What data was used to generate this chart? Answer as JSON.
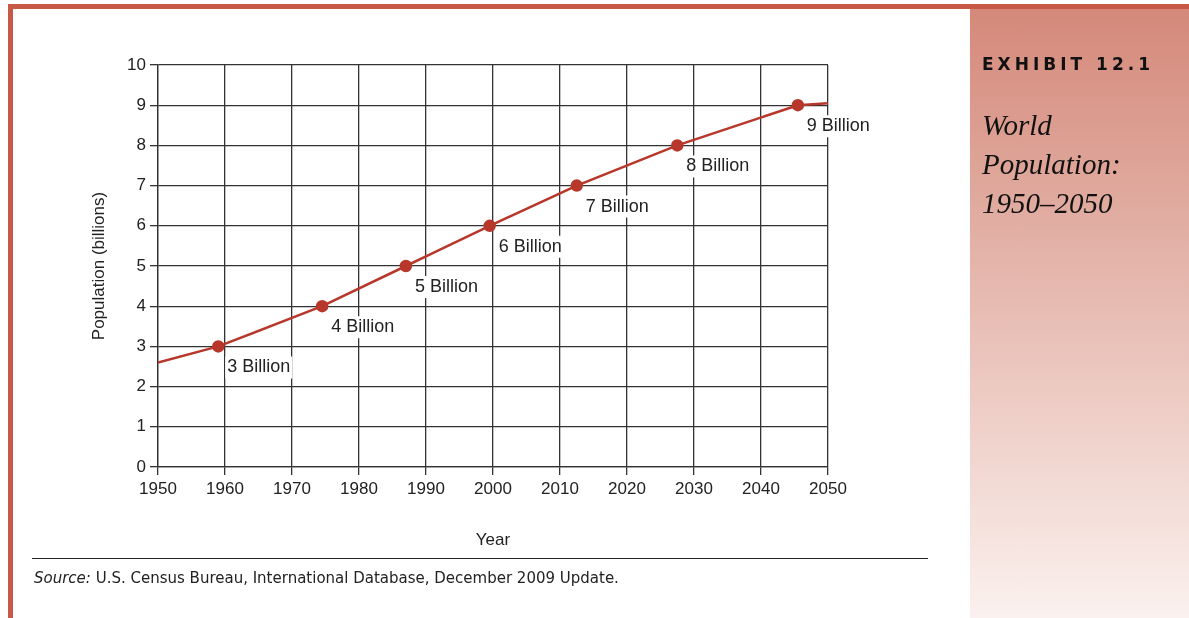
{
  "chart_data": {
    "type": "line",
    "title": "World Population: 1950–2050",
    "subtitle": "EXHIBIT 12.1",
    "xlabel": "Year",
    "ylabel": "Population (billions)",
    "annotations": [
      "Source: U.S. Census Bureau, International Database, December 2009 Update."
    ],
    "xlim": [
      1950,
      2050
    ],
    "xticks": [
      1950,
      1960,
      1970,
      1980,
      1990,
      2000,
      2010,
      2020,
      2030,
      2040,
      2050
    ],
    "ylim": [
      0,
      10
    ],
    "yticks": [
      0,
      1,
      2,
      3,
      4,
      5,
      6,
      7,
      8,
      9,
      10
    ],
    "grid": true,
    "legend": false,
    "series": [
      {
        "color": "#b8372b",
        "marker": "none",
        "x": [
          1950,
          1959,
          1974.5,
          1987,
          1999.5,
          2012.5,
          2027.5,
          2045.5,
          2050
        ],
        "values": [
          2.6,
          3,
          4,
          5,
          6,
          7,
          8,
          9,
          9.05
        ]
      },
      {
        "type": "scatter",
        "color": "#b8372b",
        "marker": "circle",
        "x": [
          1959,
          1974.5,
          1987,
          1999.5,
          2012.5,
          2027.5,
          2045.5
        ],
        "values": [
          3,
          4,
          5,
          6,
          7,
          8,
          9
        ],
        "value_labels": [
          "3 Billion",
          "4 Billion",
          "5 Billion",
          "6 Billion",
          "7 Billion",
          "8 Billion",
          "9 Billion"
        ]
      }
    ]
  }
}
